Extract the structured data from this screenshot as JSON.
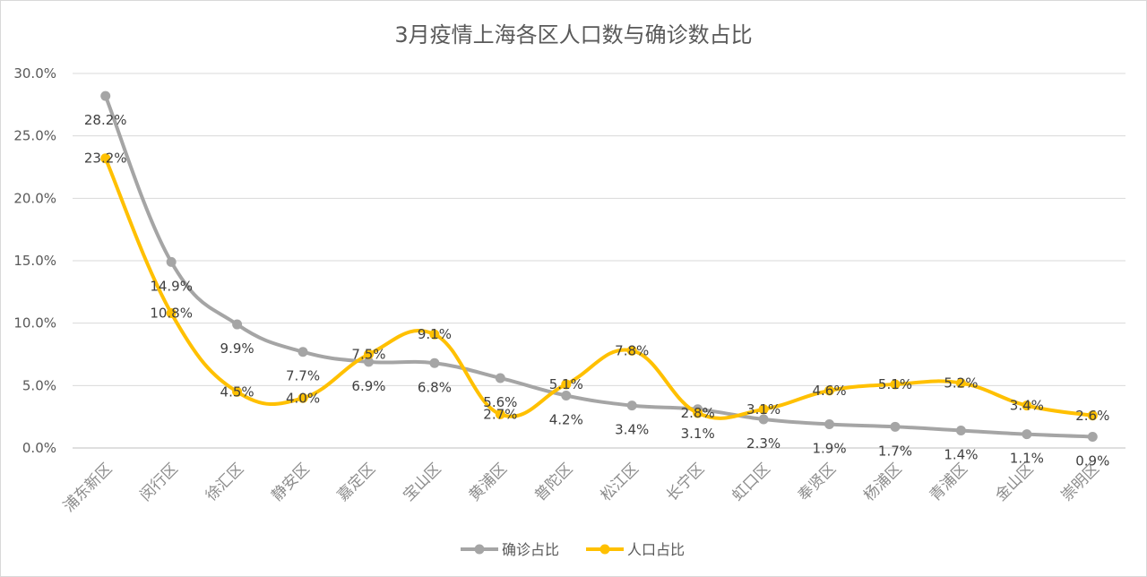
{
  "chart_data": {
    "type": "line",
    "title": "3月疫情上海各区人口数与确诊数占比",
    "categories": [
      "浦东新区",
      "闵行区",
      "徐汇区",
      "静安区",
      "嘉定区",
      "宝山区",
      "黄浦区",
      "普陀区",
      "松江区",
      "长宁区",
      "虹口区",
      "奉贤区",
      "杨浦区",
      "青浦区",
      "金山区",
      "崇明区"
    ],
    "series": [
      {
        "name": "确诊占比",
        "color": "#a5a5a5",
        "values": [
          28.2,
          14.9,
          9.9,
          7.7,
          6.9,
          6.8,
          5.6,
          4.2,
          3.4,
          3.1,
          2.3,
          1.9,
          1.7,
          1.4,
          1.1,
          0.9
        ],
        "labels": [
          "28.2%",
          "14.9%",
          "9.9%",
          "7.7%",
          "6.9%",
          "6.8%",
          "5.6%",
          "4.2%",
          "3.4%",
          "3.1%",
          "2.3%",
          "1.9%",
          "1.7%",
          "1.4%",
          "1.1%",
          "0.9%"
        ]
      },
      {
        "name": "人口占比",
        "color": "#ffc000",
        "values": [
          23.2,
          10.8,
          4.5,
          4.0,
          7.5,
          9.1,
          2.7,
          5.1,
          7.8,
          2.8,
          3.1,
          4.6,
          5.1,
          5.2,
          3.4,
          2.6
        ],
        "labels": [
          "23.2%",
          "10.8%",
          "4.5%",
          "4.0%",
          "7.5%",
          "9.1%",
          "2.7%",
          "5.1%",
          "7.8%",
          "2.8%",
          "3.1%",
          "4.6%",
          "5.1%",
          "5.2%",
          "3.4%",
          "2.6%"
        ]
      }
    ],
    "yticks": [
      "0.0%",
      "5.0%",
      "10.0%",
      "15.0%",
      "20.0%",
      "25.0%",
      "30.0%"
    ],
    "ylim": [
      0,
      30
    ],
    "xlabel": "",
    "ylabel": "",
    "grid": true,
    "legend": "bottom",
    "smooth": true
  }
}
